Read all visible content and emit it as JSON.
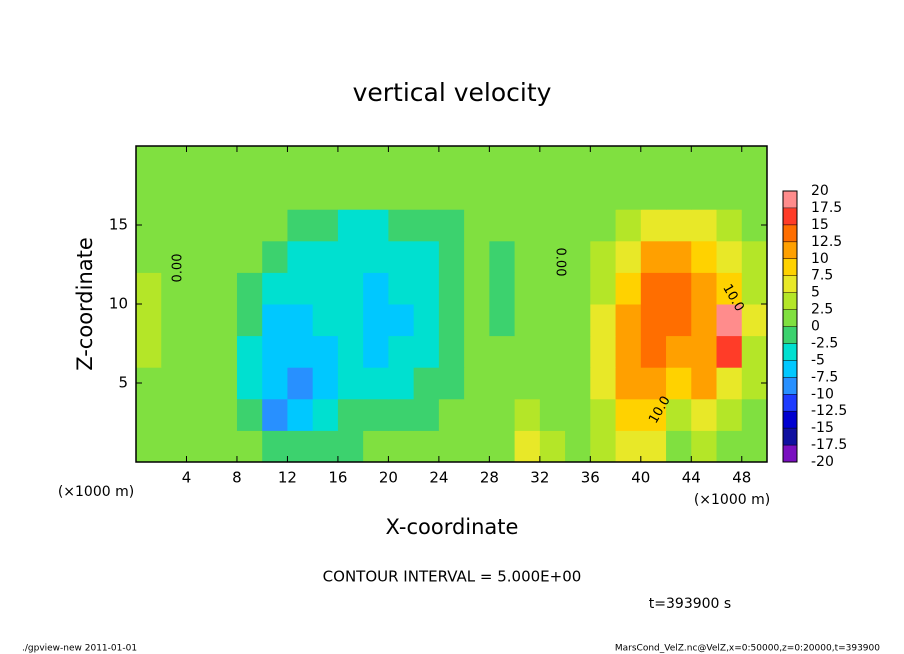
{
  "chart_data": {
    "type": "heatmap",
    "title": "vertical velocity",
    "x_label": "X-coordinate",
    "y_label": "Z-coordinate",
    "x_unit_label": "(×1000 m)",
    "y_unit_label": "(×1000 m)",
    "contour_interval": "CONTOUR INTERVAL = 5.000E+00",
    "time_label": "t=393900 s",
    "footer_left": "./gpview-new  2011-01-01",
    "footer_right": "MarsCond_VelZ.nc@VelZ,x=0:50000,z=0:20000,t=393900",
    "contour_labels": [
      "0.00",
      "0.00",
      "10.0",
      "10.0"
    ],
    "xlim": [
      0,
      50
    ],
    "ylim": [
      0,
      20
    ],
    "xticks": [
      4,
      8,
      12,
      16,
      20,
      24,
      28,
      32,
      36,
      40,
      44,
      48
    ],
    "yticks": [
      5,
      10,
      15
    ],
    "x": [
      1,
      3,
      5,
      7,
      9,
      11,
      13,
      15,
      17,
      19,
      21,
      23,
      25,
      27,
      29,
      31,
      33,
      35,
      37,
      39,
      41,
      43,
      45,
      47,
      49
    ],
    "z": [
      1,
      3,
      5,
      7,
      9,
      11,
      13,
      15,
      17,
      19
    ],
    "values": [
      [
        1,
        1,
        2,
        1,
        0,
        -2,
        -2,
        -1,
        -1,
        0,
        0,
        0,
        1,
        1,
        1,
        6,
        3,
        2,
        3,
        6,
        5,
        2,
        3,
        2,
        1
      ],
      [
        1,
        1,
        2,
        1,
        -2,
        -8,
        -6,
        -4,
        -2,
        -2,
        -1,
        -1,
        0,
        0,
        1,
        3,
        2,
        2,
        4,
        9,
        9,
        4,
        6,
        4,
        2
      ],
      [
        2,
        1,
        1,
        1,
        -3,
        -7,
        -8,
        -6,
        -4,
        -4,
        -3,
        -2,
        -1,
        0,
        0,
        1,
        2,
        2,
        5,
        11,
        12,
        8,
        11,
        7,
        3
      ],
      [
        4,
        1,
        1,
        0,
        -3,
        -7,
        -7,
        -6,
        -5,
        -6,
        -5,
        -3,
        -1,
        0,
        0,
        0,
        1,
        2,
        5,
        11,
        13,
        10,
        12,
        15,
        4
      ],
      [
        4,
        1,
        1,
        0,
        -2,
        -6,
        -6,
        -5,
        -5,
        -7,
        -6,
        -4,
        -2,
        0,
        -1,
        0,
        1,
        2,
        5,
        11,
        14,
        13,
        10,
        18,
        5
      ],
      [
        3,
        1,
        1,
        1,
        -1,
        -4,
        -5,
        -5,
        -4,
        -6,
        -5,
        -4,
        -2,
        0,
        -1,
        0,
        1,
        1,
        4,
        9,
        13,
        14,
        11,
        9,
        4
      ],
      [
        2,
        1,
        1,
        1,
        0,
        -2,
        -3,
        -4,
        -4,
        -5,
        -4,
        -3,
        -1,
        0,
        -1,
        0,
        1,
        1,
        3,
        7,
        11,
        12,
        9,
        6,
        3
      ],
      [
        1,
        1,
        1,
        1,
        1,
        0,
        -1,
        -2,
        -3,
        -3,
        -2,
        -2,
        -1,
        0,
        0,
        0,
        1,
        1,
        1,
        4,
        6,
        6,
        5,
        3,
        2
      ],
      [
        1,
        1,
        1,
        1,
        1,
        1,
        1,
        1,
        0,
        0,
        0,
        0,
        0,
        0,
        1,
        1,
        1,
        1,
        1,
        1,
        2,
        2,
        2,
        2,
        2
      ],
      [
        1,
        1,
        1,
        1,
        1,
        1,
        1,
        1,
        1,
        1,
        1,
        1,
        1,
        1,
        1,
        1,
        1,
        1,
        1,
        1,
        1,
        2,
        2,
        2,
        2
      ]
    ],
    "levels": [
      -20,
      -17.5,
      -15,
      -12.5,
      -10,
      -7.5,
      -5,
      -2.5,
      0,
      2.5,
      5,
      7.5,
      10,
      12.5,
      15,
      17.5,
      20
    ],
    "colors": [
      "#7a10c0",
      "#1010a0",
      "#0000d0",
      "#1e3cff",
      "#2890ff",
      "#00c8ff",
      "#00e0d0",
      "#3cd26e",
      "#80e040",
      "#b4e628",
      "#e8e828",
      "#ffd200",
      "#ffa000",
      "#ff6e00",
      "#ff3c28",
      "#ff8c8c"
    ]
  }
}
